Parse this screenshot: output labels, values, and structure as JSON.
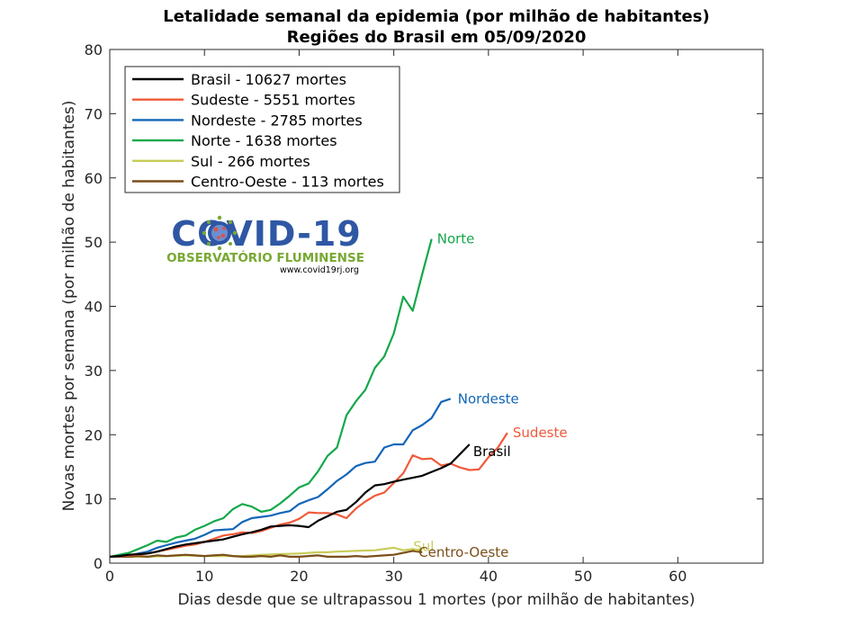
{
  "chart_data": {
    "type": "line",
    "title": "Letalidade semanal da epidemia (por milhão de habitantes)",
    "subtitle": "Regiões do Brasil em 05/09/2020",
    "xlabel": "Dias desde que se ultrapassou 1 mortes (por milhão de habitantes)",
    "ylabel": "Novas mortes por semana (por milhão de habitantes)",
    "xlim": [
      0,
      69
    ],
    "ylim": [
      0,
      80
    ],
    "xticks": [
      0,
      10,
      20,
      30,
      40,
      50,
      60
    ],
    "yticks": [
      0,
      10,
      20,
      30,
      40,
      50,
      60,
      70,
      80
    ],
    "grid": false,
    "legend_position": "top-left",
    "logo": {
      "title": "COVID-19",
      "subtitle": "OBSERVATÓRIO FLUMINENSE",
      "url": "www.covid19rj.org"
    },
    "series": [
      {
        "name": "Brasil - 10627 mortes",
        "label": "Brasil",
        "color": "#000000",
        "x": [
          0,
          1,
          2,
          3,
          4,
          5,
          6,
          7,
          8,
          9,
          10,
          11,
          12,
          13,
          14,
          15,
          16,
          17,
          18,
          19,
          20,
          21,
          22,
          23,
          24,
          25,
          26,
          27,
          28,
          29,
          30,
          31,
          32,
          33,
          34,
          35,
          36,
          37,
          38
        ],
        "y": [
          1.0,
          1.1,
          1.3,
          1.4,
          1.5,
          1.8,
          2.2,
          2.6,
          2.9,
          3.1,
          3.3,
          3.5,
          3.7,
          4.1,
          4.5,
          4.8,
          5.2,
          5.7,
          5.8,
          5.9,
          5.8,
          5.6,
          6.6,
          7.3,
          8.0,
          8.3,
          9.5,
          11.0,
          12.1,
          12.3,
          12.7,
          13.0,
          13.3,
          13.6,
          14.2,
          14.8,
          15.5,
          17.0,
          18.5
        ]
      },
      {
        "name": "Sudeste - 5551 mortes",
        "label": "Sudeste",
        "color": "#f05a3a",
        "x": [
          0,
          1,
          2,
          3,
          4,
          5,
          6,
          7,
          8,
          9,
          10,
          11,
          12,
          13,
          14,
          15,
          16,
          17,
          18,
          19,
          20,
          21,
          22,
          23,
          24,
          25,
          26,
          27,
          28,
          29,
          30,
          31,
          32,
          33,
          34,
          35,
          36,
          37,
          38,
          39,
          40,
          41,
          42
        ],
        "y": [
          1.0,
          1.1,
          1.2,
          1.3,
          1.5,
          1.8,
          2.1,
          2.4,
          2.7,
          2.9,
          3.3,
          3.8,
          4.3,
          4.5,
          4.8,
          4.7,
          5.0,
          5.5,
          6.0,
          6.3,
          6.9,
          7.9,
          7.8,
          7.8,
          7.6,
          7.0,
          8.5,
          9.6,
          10.5,
          11.0,
          12.5,
          14.0,
          16.8,
          16.2,
          16.3,
          15.2,
          15.5,
          14.9,
          14.5,
          14.6,
          16.5,
          18.0,
          20.3
        ]
      },
      {
        "name": "Nordeste - 2785 mortes",
        "label": "Nordeste",
        "color": "#1366b7",
        "x": [
          0,
          1,
          2,
          3,
          4,
          5,
          6,
          7,
          8,
          9,
          10,
          11,
          12,
          13,
          14,
          15,
          16,
          17,
          18,
          19,
          20,
          21,
          22,
          23,
          24,
          25,
          26,
          27,
          28,
          29,
          30,
          31,
          32,
          33,
          34,
          35,
          36
        ],
        "y": [
          1.0,
          1.1,
          1.2,
          1.5,
          1.8,
          2.4,
          2.8,
          3.2,
          3.5,
          3.8,
          4.4,
          5.1,
          5.2,
          5.3,
          6.4,
          7.0,
          7.2,
          7.4,
          7.8,
          8.1,
          9.2,
          9.8,
          10.3,
          11.5,
          12.8,
          13.8,
          15.1,
          15.6,
          15.8,
          18.0,
          18.5,
          18.5,
          20.7,
          21.5,
          22.6,
          25.1,
          25.6
        ]
      },
      {
        "name": "Norte - 1638 mortes",
        "label": "Norte",
        "color": "#14a84a",
        "x": [
          0,
          1,
          2,
          3,
          4,
          5,
          6,
          7,
          8,
          9,
          10,
          11,
          12,
          13,
          14,
          15,
          16,
          17,
          18,
          19,
          20,
          21,
          22,
          23,
          24,
          25,
          26,
          27,
          28,
          29,
          30,
          31,
          32,
          33,
          34
        ],
        "y": [
          1.0,
          1.3,
          1.6,
          2.2,
          2.8,
          3.5,
          3.3,
          4.0,
          4.3,
          5.2,
          5.8,
          6.5,
          7.0,
          8.4,
          9.2,
          8.8,
          8.0,
          8.3,
          9.3,
          10.5,
          11.8,
          12.4,
          14.3,
          16.7,
          18.0,
          23.0,
          25.2,
          27.0,
          30.4,
          32.2,
          35.8,
          41.5,
          39.3,
          45.0,
          50.5
        ]
      },
      {
        "name": "Sul - 266 mortes",
        "label": "Sul",
        "color": "#c8cc5a",
        "x": [
          0,
          2,
          4,
          6,
          8,
          10,
          12,
          14,
          16,
          18,
          20,
          21,
          22,
          23,
          24,
          26,
          28,
          30,
          31,
          32,
          33
        ],
        "y": [
          1.0,
          1.0,
          1.0,
          1.1,
          1.2,
          1.1,
          1.1,
          1.1,
          1.3,
          1.4,
          1.5,
          1.6,
          1.7,
          1.7,
          1.8,
          1.9,
          2.0,
          2.4,
          2.0,
          2.2,
          2.0
        ]
      },
      {
        "name": "Centro-Oeste - 113 mortes",
        "label": "Centro-Oeste",
        "color": "#7b4f1a",
        "x": [
          0,
          1,
          2,
          3,
          4,
          5,
          6,
          7,
          8,
          9,
          10,
          11,
          12,
          13,
          14,
          15,
          16,
          17,
          18,
          19,
          20,
          21,
          22,
          23,
          24,
          25,
          26,
          27,
          28,
          29,
          30,
          31,
          32,
          33
        ],
        "y": [
          1.0,
          1.0,
          1.0,
          1.1,
          1.0,
          1.2,
          1.1,
          1.2,
          1.3,
          1.2,
          1.1,
          1.2,
          1.3,
          1.1,
          1.0,
          1.0,
          1.1,
          1.0,
          1.2,
          1.0,
          1.0,
          1.1,
          1.2,
          1.0,
          1.0,
          1.0,
          1.1,
          1.0,
          1.1,
          1.2,
          1.3,
          1.6,
          1.9,
          1.7
        ]
      }
    ]
  }
}
